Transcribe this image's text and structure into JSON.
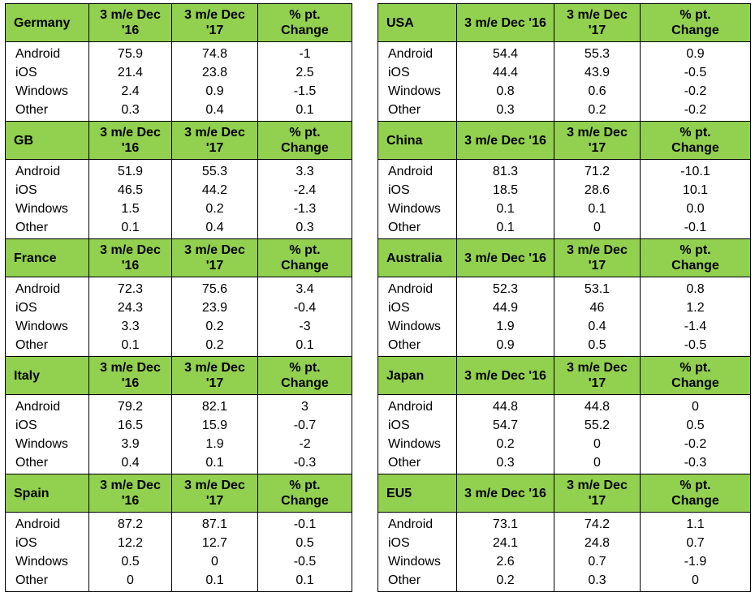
{
  "colors": {
    "header_green": "#92d050",
    "border": "#000000"
  },
  "panels": [
    {
      "tables": [
        {
          "country": "Germany",
          "headers": [
            "3 m/e Dec '16",
            "3 m/e Dec '17",
            "% pt. Change"
          ],
          "rows": [
            [
              "Android",
              "75.9",
              "74.8",
              "-1"
            ],
            [
              "iOS",
              "21.4",
              "23.8",
              "2.5"
            ],
            [
              "Windows",
              "2.4",
              "0.9",
              "-1.5"
            ],
            [
              "Other",
              "0.3",
              "0.4",
              "0.1"
            ]
          ]
        },
        {
          "country": "GB",
          "headers": [
            "3 m/e Dec '16",
            "3 m/e Dec '17",
            "% pt. Change"
          ],
          "rows": [
            [
              "Android",
              "51.9",
              "55.3",
              "3.3"
            ],
            [
              "iOS",
              "46.5",
              "44.2",
              "-2.4"
            ],
            [
              "Windows",
              "1.5",
              "0.2",
              "-1.3"
            ],
            [
              "Other",
              "0.1",
              "0.4",
              "0.3"
            ]
          ]
        },
        {
          "country": "France",
          "headers": [
            "3 m/e Dec '16",
            "3 m/e Dec '17",
            "% pt. Change"
          ],
          "rows": [
            [
              "Android",
              "72.3",
              "75.6",
              "3.4"
            ],
            [
              "iOS",
              "24.3",
              "23.9",
              "-0.4"
            ],
            [
              "Windows",
              "3.3",
              "0.2",
              "-3"
            ],
            [
              "Other",
              "0.1",
              "0.2",
              "0.1"
            ]
          ]
        },
        {
          "country": "Italy",
          "headers": [
            "3 m/e Dec '16",
            "3 m/e Dec '17",
            "% pt. Change"
          ],
          "rows": [
            [
              "Android",
              "79.2",
              "82.1",
              "3"
            ],
            [
              "iOS",
              "16.5",
              "15.9",
              "-0.7"
            ],
            [
              "Windows",
              "3.9",
              "1.9",
              "-2"
            ],
            [
              "Other",
              "0.4",
              "0.1",
              "-0.3"
            ]
          ]
        },
        {
          "country": "Spain",
          "headers": [
            "3 m/e Dec '16",
            "3 m/e Dec '17",
            "% pt. Change"
          ],
          "rows": [
            [
              "Android",
              "87.2",
              "87.1",
              "-0.1"
            ],
            [
              "iOS",
              "12.2",
              "12.7",
              "0.5"
            ],
            [
              "Windows",
              "0.5",
              "0",
              "-0.5"
            ],
            [
              "Other",
              "0",
              "0.1",
              "0.1"
            ]
          ]
        }
      ]
    },
    {
      "tables": [
        {
          "country": "USA",
          "headers": [
            "3 m/e Dec '16",
            "3 m/e Dec '17",
            "% pt. Change"
          ],
          "rows": [
            [
              "Android",
              "54.4",
              "55.3",
              "0.9"
            ],
            [
              "iOS",
              "44.4",
              "43.9",
              "-0.5"
            ],
            [
              "Windows",
              "0.8",
              "0.6",
              "-0.2"
            ],
            [
              "Other",
              "0.3",
              "0.2",
              "-0.2"
            ]
          ]
        },
        {
          "country": "China",
          "headers": [
            "3 m/e Dec '16",
            "3 m/e Dec '17",
            "% pt. Change"
          ],
          "rows": [
            [
              "Android",
              "81.3",
              "71.2",
              "-10.1"
            ],
            [
              "iOS",
              "18.5",
              "28.6",
              "10.1"
            ],
            [
              "Windows",
              "0.1",
              "0.1",
              "0.0"
            ],
            [
              "Other",
              "0.1",
              "0",
              "-0.1"
            ]
          ]
        },
        {
          "country": "Australia",
          "headers": [
            "3 m/e Dec '16",
            "3 m/e Dec '17",
            "% pt. Change"
          ],
          "rows": [
            [
              "Android",
              "52.3",
              "53.1",
              "0.8"
            ],
            [
              "iOS",
              "44.9",
              "46",
              "1.2"
            ],
            [
              "Windows",
              "1.9",
              "0.4",
              "-1.4"
            ],
            [
              "Other",
              "0.9",
              "0.5",
              "-0.5"
            ]
          ]
        },
        {
          "country": "Japan",
          "headers": [
            "3 m/e Dec '16",
            "3 m/e Dec '17",
            "% pt. Change"
          ],
          "rows": [
            [
              "Android",
              "44.8",
              "44.8",
              "0"
            ],
            [
              "iOS",
              "54.7",
              "55.2",
              "0.5"
            ],
            [
              "Windows",
              "0.2",
              "0",
              "-0.2"
            ],
            [
              "Other",
              "0.3",
              "0",
              "-0.3"
            ]
          ]
        },
        {
          "country": "EU5",
          "headers": [
            "3 m/e Dec '16",
            "3 m/e Dec '17",
            "% pt. Change"
          ],
          "rows": [
            [
              "Android",
              "73.1",
              "74.2",
              "1.1"
            ],
            [
              "iOS",
              "24.1",
              "24.8",
              "0.7"
            ],
            [
              "Windows",
              "2.6",
              "0.7",
              "-1.9"
            ],
            [
              "Other",
              "0.2",
              "0.3",
              "0"
            ]
          ]
        }
      ]
    }
  ]
}
